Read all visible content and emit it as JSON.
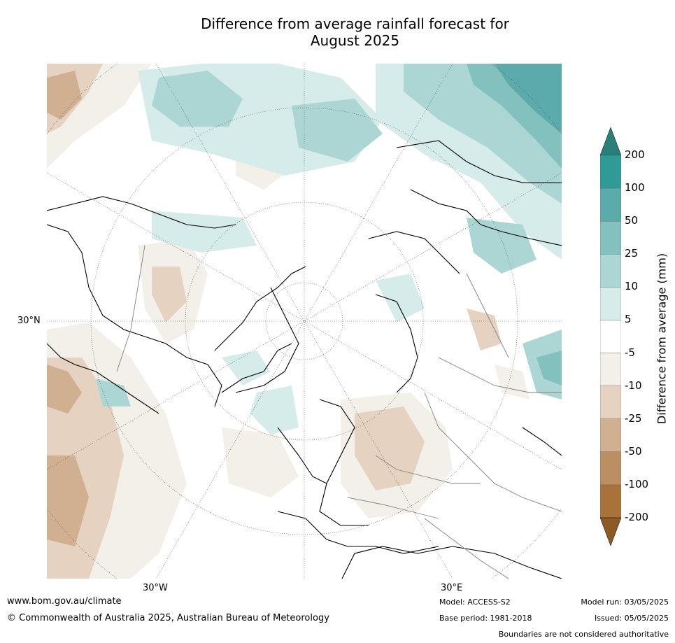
{
  "title_line1": "Difference from average rainfall forecast for",
  "title_line2": "August 2025",
  "map": {
    "lat_label": "30°N",
    "lon_labels": [
      "30°W",
      "30°E"
    ]
  },
  "colorbar": {
    "label": "Difference from average (mm)",
    "ticks": [
      "200",
      "100",
      "50",
      "25",
      "10",
      "5",
      "-5",
      "-10",
      "-25",
      "-50",
      "-100",
      "-200"
    ],
    "colors": [
      "#2a7f7c",
      "#2f9a96",
      "#5aabaa",
      "#83c1bf",
      "#acd6d4",
      "#d6ecea",
      "#ffffff",
      "#f3efe9",
      "#e5d2c1",
      "#d1b092",
      "#bb8f63",
      "#a9723b",
      "#8c5a24"
    ]
  },
  "footer": {
    "url": "www.bom.gov.au/climate",
    "copyright": "© Commonwealth of Australia 2025, Australian Bureau of Meteorology",
    "model": "Model: ACCESS-S2",
    "base_period": "Base period: 1981-2018",
    "model_run": "Model run: 03/05/2025",
    "issued": "Issued: 05/05/2025",
    "disclaimer": "Boundaries are not considered authoritative"
  }
}
